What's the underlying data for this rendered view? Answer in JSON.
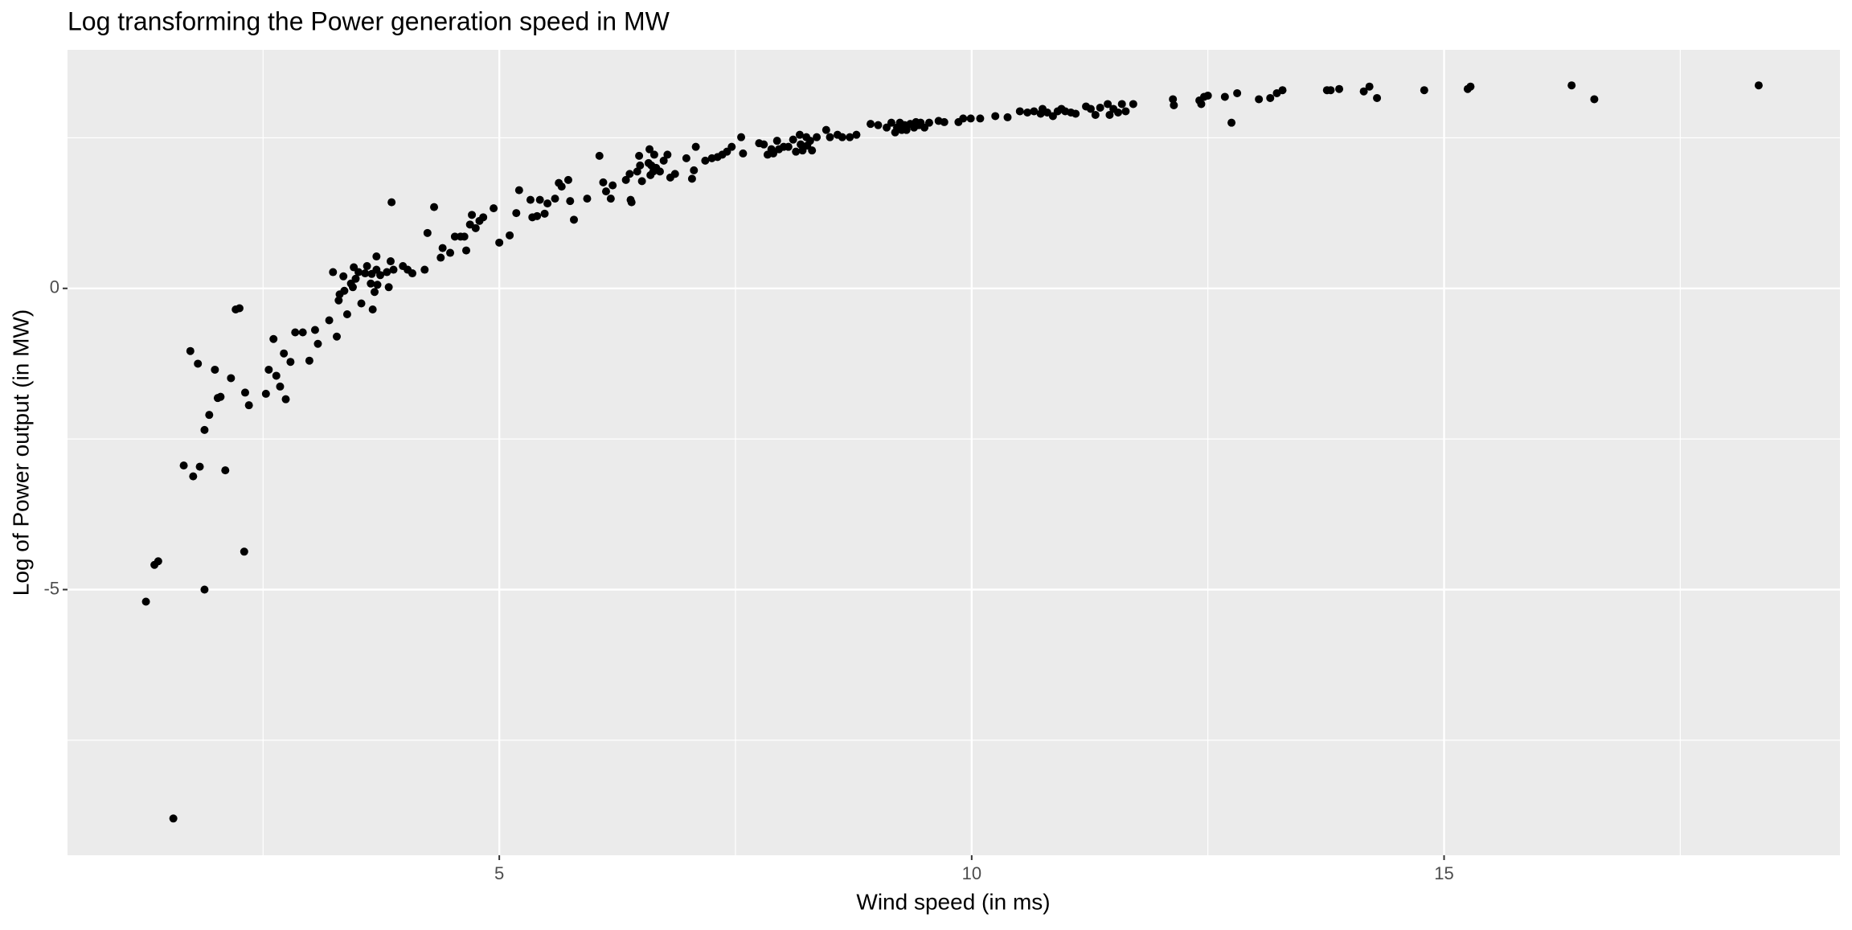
{
  "chart_data": {
    "type": "scatter",
    "title": "Log transforming the Power generation speed in MW",
    "x_label": "Wind speed (in ms)",
    "y_label": "Log of Power output (in MW)",
    "color": "#000000",
    "xlim": [
      0.43,
      19.19
    ],
    "ylim": [
      -9.41,
      3.96
    ],
    "xticks": [
      5,
      10,
      15
    ],
    "yticks": [
      -5,
      0
    ],
    "minor_xticks": [
      2.5,
      7.5,
      12.5,
      17.5
    ],
    "minor_yticks": [
      -7.5,
      -2.5,
      2.5
    ],
    "grid": true,
    "x": [
      1.26,
      1.35,
      1.39,
      1.55,
      1.66,
      1.73,
      1.76,
      1.81,
      1.83,
      1.88,
      1.88,
      1.93,
      1.99,
      2.02,
      2.05,
      2.1,
      2.16,
      2.21,
      2.25,
      2.3,
      2.31,
      2.35,
      2.53,
      2.56,
      2.61,
      2.64,
      2.68,
      2.72,
      2.74,
      2.79,
      2.84,
      2.92,
      2.99,
      3.05,
      3.08,
      3.2,
      3.24,
      3.28,
      3.3,
      3.31,
      3.35,
      3.36,
      3.39,
      3.43,
      3.45,
      3.46,
      3.48,
      3.51,
      3.54,
      3.58,
      3.6,
      3.64,
      3.65,
      3.66,
      3.68,
      3.7,
      3.7,
      3.71,
      3.74,
      3.81,
      3.83,
      3.85,
      3.86,
      3.88,
      3.98,
      4.03,
      4.08,
      4.21,
      4.24,
      4.31,
      4.38,
      4.4,
      4.48,
      4.53,
      4.59,
      4.63,
      4.65,
      4.69,
      4.71,
      4.75,
      4.79,
      4.83,
      4.94,
      5.0,
      5.11,
      5.18,
      5.21,
      5.33,
      5.35,
      5.4,
      5.43,
      5.48,
      5.51,
      5.59,
      5.63,
      5.66,
      5.73,
      5.75,
      5.79,
      5.93,
      6.06,
      6.1,
      6.13,
      6.18,
      6.2,
      6.34,
      6.38,
      6.39,
      6.4,
      6.46,
      6.48,
      6.49,
      6.51,
      6.58,
      6.59,
      6.6,
      6.61,
      6.63,
      6.64,
      6.66,
      6.7,
      6.74,
      6.78,
      6.81,
      6.86,
      6.98,
      7.04,
      7.06,
      7.08,
      7.18,
      7.25,
      7.31,
      7.36,
      7.41,
      7.46,
      7.56,
      7.58,
      7.75,
      7.8,
      7.84,
      7.88,
      7.9,
      7.94,
      7.96,
      8.01,
      8.06,
      8.11,
      8.14,
      8.18,
      8.19,
      8.21,
      8.25,
      8.26,
      8.29,
      8.31,
      8.36,
      8.46,
      8.5,
      8.58,
      8.63,
      8.71,
      8.78,
      8.93,
      9.01,
      9.1,
      9.15,
      9.19,
      9.21,
      9.24,
      9.26,
      9.29,
      9.31,
      9.35,
      9.39,
      9.41,
      9.44,
      9.46,
      9.5,
      9.55,
      9.65,
      9.71,
      9.86,
      9.91,
      9.99,
      10.09,
      10.25,
      10.38,
      10.51,
      10.59,
      10.66,
      10.73,
      10.75,
      10.8,
      10.86,
      10.91,
      10.95,
      10.99,
      11.05,
      11.1,
      11.21,
      11.26,
      11.31,
      11.36,
      11.44,
      11.46,
      11.5,
      11.55,
      11.59,
      11.63,
      11.71,
      12.13,
      12.14,
      12.41,
      12.43,
      12.46,
      12.5,
      12.68,
      12.75,
      12.81,
      13.04,
      13.16,
      13.23,
      13.29,
      13.76,
      13.8,
      13.89,
      14.15,
      14.21,
      14.29,
      14.79,
      15.25,
      15.28,
      16.35,
      16.59,
      18.33
    ],
    "values": [
      -5.2,
      -4.59,
      -4.53,
      -8.8,
      -2.94,
      -1.04,
      -3.12,
      -1.25,
      -2.96,
      -5.0,
      -2.35,
      -2.1,
      -1.35,
      -1.82,
      -1.8,
      -3.02,
      -1.49,
      -0.35,
      -0.33,
      -4.37,
      -1.73,
      -1.94,
      -1.75,
      -1.35,
      -0.84,
      -1.45,
      -1.63,
      -1.08,
      -1.84,
      -1.22,
      -0.73,
      -0.73,
      -1.2,
      -0.69,
      -0.92,
      -0.53,
      0.27,
      -0.8,
      -0.2,
      -0.1,
      0.2,
      -0.04,
      -0.43,
      0.08,
      0.02,
      0.35,
      0.16,
      0.27,
      -0.25,
      0.25,
      0.37,
      0.08,
      0.24,
      -0.35,
      -0.06,
      0.53,
      0.31,
      0.06,
      0.22,
      0.27,
      0.02,
      0.45,
      1.43,
      0.31,
      0.37,
      0.31,
      0.25,
      0.31,
      0.92,
      1.35,
      0.51,
      0.67,
      0.59,
      0.86,
      0.86,
      0.86,
      0.63,
      1.06,
      1.22,
      1.0,
      1.12,
      1.18,
      1.33,
      0.76,
      0.88,
      1.25,
      1.63,
      1.47,
      1.18,
      1.2,
      1.47,
      1.24,
      1.41,
      1.49,
      1.75,
      1.69,
      1.8,
      1.45,
      1.14,
      1.49,
      2.2,
      1.76,
      1.61,
      1.49,
      1.71,
      1.8,
      1.9,
      1.47,
      1.43,
      1.94,
      2.2,
      2.04,
      1.78,
      2.08,
      2.31,
      1.88,
      2.04,
      1.94,
      2.22,
      2.0,
      1.94,
      2.12,
      2.22,
      1.84,
      1.9,
      2.16,
      1.82,
      1.96,
      2.35,
      2.12,
      2.16,
      2.18,
      2.22,
      2.27,
      2.35,
      2.51,
      2.24,
      2.41,
      2.39,
      2.22,
      2.31,
      2.24,
      2.45,
      2.31,
      2.35,
      2.35,
      2.47,
      2.27,
      2.55,
      2.39,
      2.29,
      2.51,
      2.37,
      2.45,
      2.29,
      2.51,
      2.63,
      2.51,
      2.55,
      2.51,
      2.51,
      2.55,
      2.73,
      2.71,
      2.67,
      2.75,
      2.59,
      2.67,
      2.75,
      2.63,
      2.71,
      2.63,
      2.73,
      2.67,
      2.76,
      2.71,
      2.75,
      2.67,
      2.75,
      2.78,
      2.76,
      2.76,
      2.82,
      2.82,
      2.82,
      2.86,
      2.84,
      2.94,
      2.92,
      2.94,
      2.9,
      2.98,
      2.92,
      2.86,
      2.94,
      2.98,
      2.94,
      2.92,
      2.9,
      3.02,
      2.98,
      2.88,
      3.0,
      3.06,
      2.88,
      2.98,
      2.92,
      3.06,
      2.94,
      3.06,
      3.14,
      3.04,
      3.12,
      3.06,
      3.18,
      3.2,
      3.18,
      2.75,
      3.24,
      3.14,
      3.16,
      3.24,
      3.29,
      3.29,
      3.29,
      3.31,
      3.27,
      3.35,
      3.16,
      3.29,
      3.31,
      3.35,
      3.37,
      3.14,
      3.37
    ]
  }
}
